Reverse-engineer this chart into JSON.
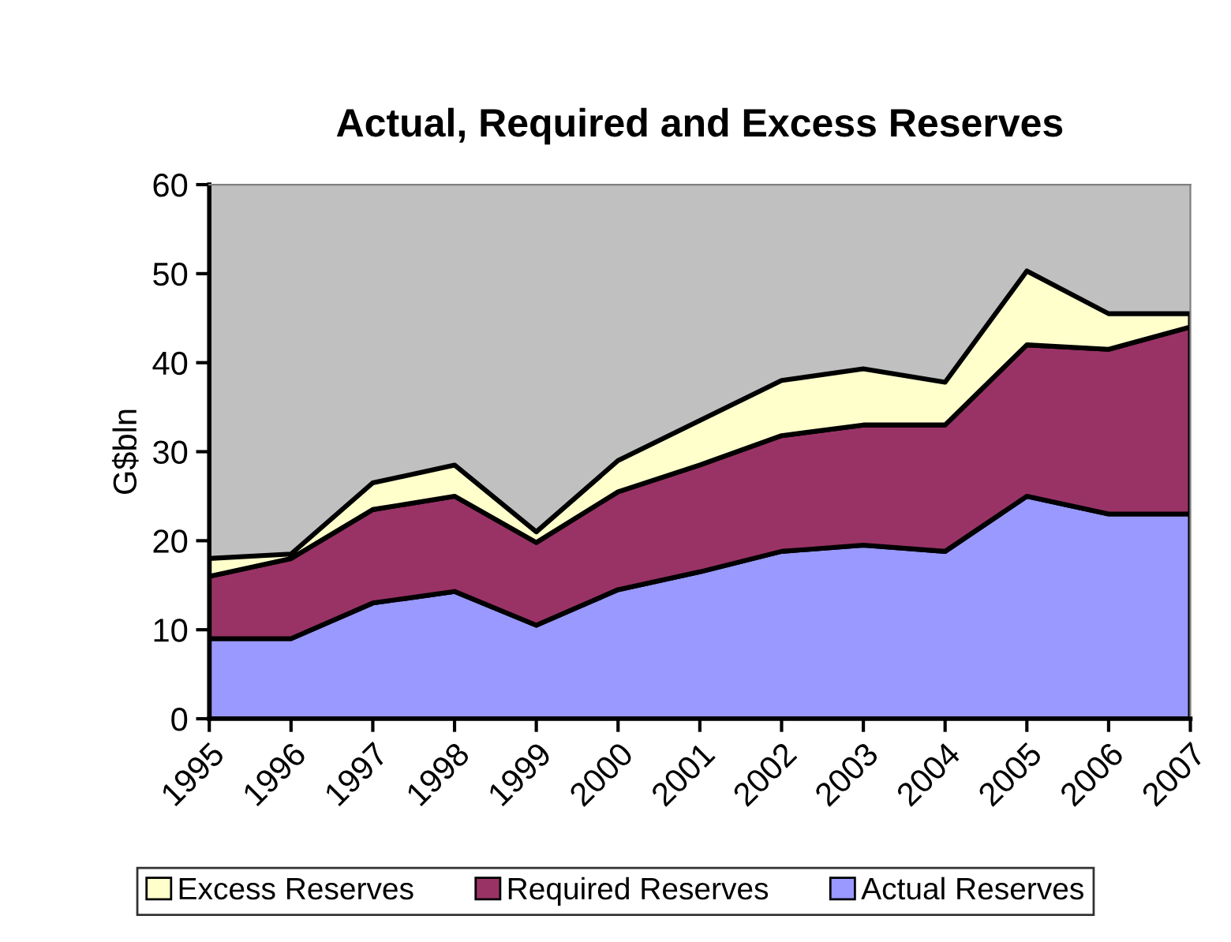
{
  "chart_data": {
    "type": "area",
    "stacked": true,
    "title": "Actual, Required and Excess Reserves",
    "ylabel": "G$bln",
    "categories": [
      "1995",
      "1996",
      "1997",
      "1998",
      "1999",
      "2000",
      "2001",
      "2002",
      "2003",
      "2004",
      "2005",
      "2006",
      "2007"
    ],
    "series": [
      {
        "name": "Actual Reserves",
        "color": "#9999ff",
        "values": [
          9,
          9,
          13,
          14.3,
          10.5,
          14.5,
          16.5,
          18.8,
          19.5,
          18.8,
          25,
          23,
          23
        ]
      },
      {
        "name": "Required Reserves",
        "color": "#993366",
        "values": [
          7,
          9,
          10.5,
          10.7,
          9.3,
          11,
          12,
          13,
          13.5,
          14.2,
          17,
          18.5,
          21
        ]
      },
      {
        "name": "Excess Reserves",
        "color": "#ffffcc",
        "values": [
          2,
          0.5,
          3,
          3.5,
          1.2,
          3.5,
          5,
          6.2,
          6.3,
          4.8,
          8.3,
          4,
          1.5
        ]
      }
    ],
    "ylim": [
      0,
      60
    ],
    "yticks": [
      0,
      10,
      20,
      30,
      40,
      50,
      60
    ],
    "grid": false,
    "legend": "bottom"
  }
}
